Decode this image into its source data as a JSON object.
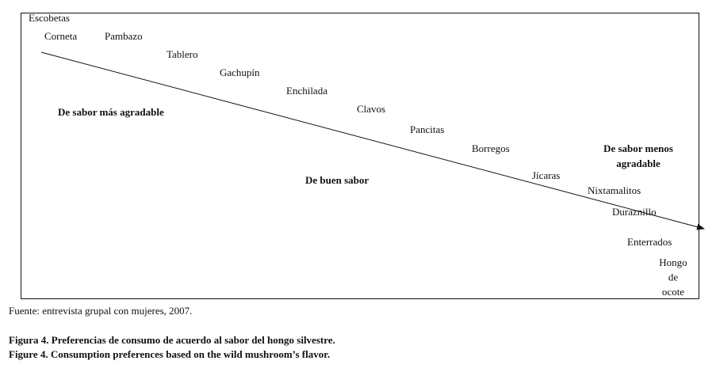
{
  "diagram": {
    "items": [
      "Escobetas",
      "Corneta",
      "Pambazo",
      "Tablero",
      "Gachupín",
      "Enchilada",
      "Clavos",
      "Pancitas",
      "Borregos",
      "Jícaras",
      "Nixtamalitos",
      "Duraznillo",
      "Enterrados",
      [
        "Hongo",
        "de",
        "ocote"
      ]
    ],
    "regions": [
      [
        "De sabor más agradable"
      ],
      [
        "De buen sabor"
      ],
      [
        "De sabor menos",
        "agradable"
      ]
    ]
  },
  "source": "Fuente: entrevista grupal con mujeres, 2007.",
  "caption_es": "Figura 4. Preferencias de consumo de acuerdo al sabor del hongo silvestre.",
  "caption_en": "Figure 4. Consumption preferences based on the wild mushroom’s flavor."
}
